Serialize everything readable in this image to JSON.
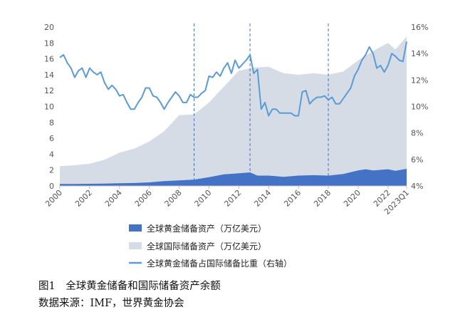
{
  "chart_data": {
    "type": "area",
    "title": "",
    "xlabel": "",
    "ylabel": "",
    "ylim": [
      0,
      20
    ],
    "y2lim": [
      4,
      16
    ],
    "yticks": [
      0,
      2,
      4,
      6,
      8,
      10,
      12,
      14,
      16,
      18,
      20
    ],
    "y2ticks": [
      "4%",
      "6%",
      "8%",
      "10%",
      "12%",
      "14%",
      "16%"
    ],
    "xticks": [
      "2000",
      "2002",
      "2004",
      "2006",
      "2008",
      "2010",
      "2012",
      "2014",
      "2016",
      "2018",
      "2020",
      "2022",
      "2023Q1"
    ],
    "grid": false,
    "legend_position": "bottom",
    "vlines": [
      2009.0,
      2012.75,
      2018.0
    ],
    "series": [
      {
        "name": "全球黄金储备资产（万亿美元）",
        "kind": "area",
        "axis": "left",
        "color": "#4472C4",
        "x": [
          2000,
          2001,
          2002,
          2003,
          2004,
          2005,
          2006,
          2007,
          2008,
          2009,
          2010,
          2011,
          2012,
          2012.75,
          2013.25,
          2014,
          2015,
          2016,
          2017,
          2018,
          2019,
          2020,
          2020.5,
          2021,
          2022,
          2022.5,
          2023.25
        ],
        "values": [
          0.25,
          0.25,
          0.27,
          0.3,
          0.33,
          0.37,
          0.45,
          0.6,
          0.7,
          0.8,
          1.1,
          1.45,
          1.6,
          1.7,
          1.3,
          1.3,
          1.15,
          1.3,
          1.35,
          1.3,
          1.5,
          1.95,
          2.1,
          1.95,
          2.1,
          1.9,
          2.15
        ]
      },
      {
        "name": "全球国际储备资产（万亿美元）",
        "kind": "area",
        "axis": "left",
        "color": "#D6DCE5",
        "x": [
          2000,
          2001,
          2002,
          2003,
          2004,
          2005,
          2006,
          2007,
          2008,
          2009,
          2010,
          2011,
          2012,
          2013,
          2014,
          2015,
          2016,
          2017,
          2018,
          2019,
          2020,
          2021,
          2022,
          2022.5,
          2023.25
        ],
        "values": [
          2.5,
          2.6,
          2.8,
          3.3,
          4.2,
          4.7,
          5.6,
          6.9,
          8.9,
          9.0,
          10.5,
          12.5,
          14.5,
          14.9,
          15.0,
          14.2,
          14.0,
          14.2,
          14.0,
          14.4,
          15.8,
          17.0,
          18.0,
          17.2,
          18.8
        ]
      },
      {
        "name": "全球黄金储备占国际储备比重（右轴）",
        "kind": "line",
        "axis": "right",
        "color": "#5B9BD5",
        "unit": "%",
        "x": [
          2000,
          2000.25,
          2000.5,
          2000.75,
          2001,
          2001.25,
          2001.5,
          2001.75,
          2002,
          2002.25,
          2002.5,
          2002.75,
          2003,
          2003.25,
          2003.5,
          2003.75,
          2004,
          2004.25,
          2004.5,
          2004.75,
          2005,
          2005.25,
          2005.5,
          2005.75,
          2006,
          2006.25,
          2006.5,
          2006.75,
          2007,
          2007.25,
          2007.5,
          2007.75,
          2008,
          2008.25,
          2008.5,
          2008.75,
          2009,
          2009.25,
          2009.5,
          2009.75,
          2010,
          2010.25,
          2010.5,
          2010.75,
          2011,
          2011.25,
          2011.5,
          2011.75,
          2012,
          2012.25,
          2012.5,
          2012.75,
          2013,
          2013.25,
          2013.5,
          2013.75,
          2014,
          2014.25,
          2014.5,
          2014.75,
          2015,
          2015.25,
          2015.5,
          2015.75,
          2016,
          2016.25,
          2016.5,
          2016.75,
          2017,
          2017.25,
          2017.5,
          2017.75,
          2018,
          2018.25,
          2018.5,
          2018.75,
          2019,
          2019.25,
          2019.5,
          2019.75,
          2020,
          2020.25,
          2020.5,
          2020.75,
          2021,
          2021.25,
          2021.5,
          2021.75,
          2022,
          2022.25,
          2022.5,
          2022.75,
          2023,
          2023.25
        ],
        "values": [
          13.7,
          13.9,
          13.3,
          12.9,
          12.2,
          12.7,
          12.9,
          12.2,
          12.9,
          12.6,
          12.4,
          12.6,
          11.8,
          11.3,
          11.6,
          11.3,
          10.8,
          10.9,
          10.3,
          9.8,
          9.8,
          10.3,
          10.7,
          11.4,
          11.4,
          10.8,
          10.7,
          10.3,
          9.8,
          10.3,
          10.7,
          11.1,
          10.8,
          10.3,
          10.3,
          10.9,
          10.7,
          10.7,
          11.0,
          11.2,
          12.3,
          12.2,
          12.6,
          12.3,
          12.9,
          13.3,
          12.5,
          13.5,
          12.9,
          13.2,
          13.5,
          13.9,
          12.5,
          12.8,
          9.8,
          10.3,
          9.3,
          9.8,
          9.8,
          9.5,
          9.5,
          9.5,
          9.5,
          9.3,
          9.3,
          11.1,
          11.2,
          10.2,
          10.5,
          10.7,
          10.7,
          10.8,
          10.5,
          10.7,
          10.2,
          10.2,
          10.6,
          11.0,
          11.4,
          12.3,
          12.8,
          13.5,
          13.9,
          14.5,
          14.0,
          12.9,
          13.1,
          12.6,
          13.1,
          14.0,
          13.8,
          13.5,
          13.4,
          14.9
        ]
      }
    ]
  },
  "caption": {
    "title": "图1　全球黄金储备和国际储备资产余额",
    "source": "数据来源：IMF，世界黄金协会"
  }
}
